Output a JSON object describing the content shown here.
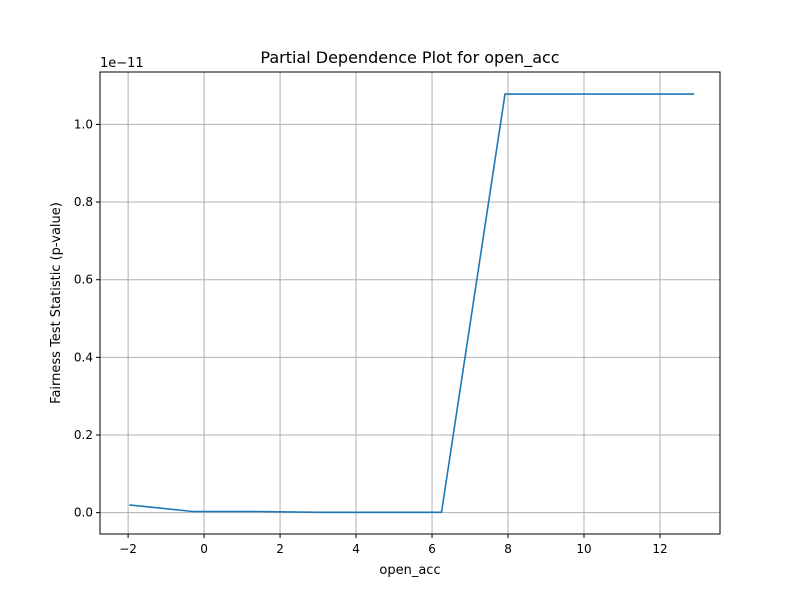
{
  "chart_data": {
    "type": "line",
    "title": "Partial Dependence Plot for open_acc",
    "xlabel": "open_acc",
    "ylabel": "Fairness Test Statistic (p-value)",
    "y_offset_label": "1e−11",
    "xlim": [
      -2.74,
      13.58
    ],
    "ylim": [
      -0.055,
      1.135
    ],
    "x_ticks": [
      -2,
      0,
      2,
      4,
      6,
      8,
      10,
      12
    ],
    "x_tick_labels": [
      "−2",
      "0",
      "2",
      "4",
      "6",
      "8",
      "10",
      "12"
    ],
    "y_ticks": [
      0.0,
      0.2,
      0.4,
      0.6,
      0.8,
      1.0
    ],
    "y_tick_labels": [
      "0.0",
      "0.2",
      "0.4",
      "0.6",
      "0.8",
      "1.0"
    ],
    "grid": true,
    "series": [
      {
        "color": "#1f77b4",
        "x": [
          -1.97,
          -0.3,
          1.4,
          3.05,
          4.7,
          6.25,
          7.92,
          9.58,
          11.24,
          12.9
        ],
        "y": [
          0.02,
          0.003,
          0.003,
          0.001,
          0.001,
          0.001,
          1.078,
          1.078,
          1.078,
          1.078
        ]
      }
    ]
  }
}
